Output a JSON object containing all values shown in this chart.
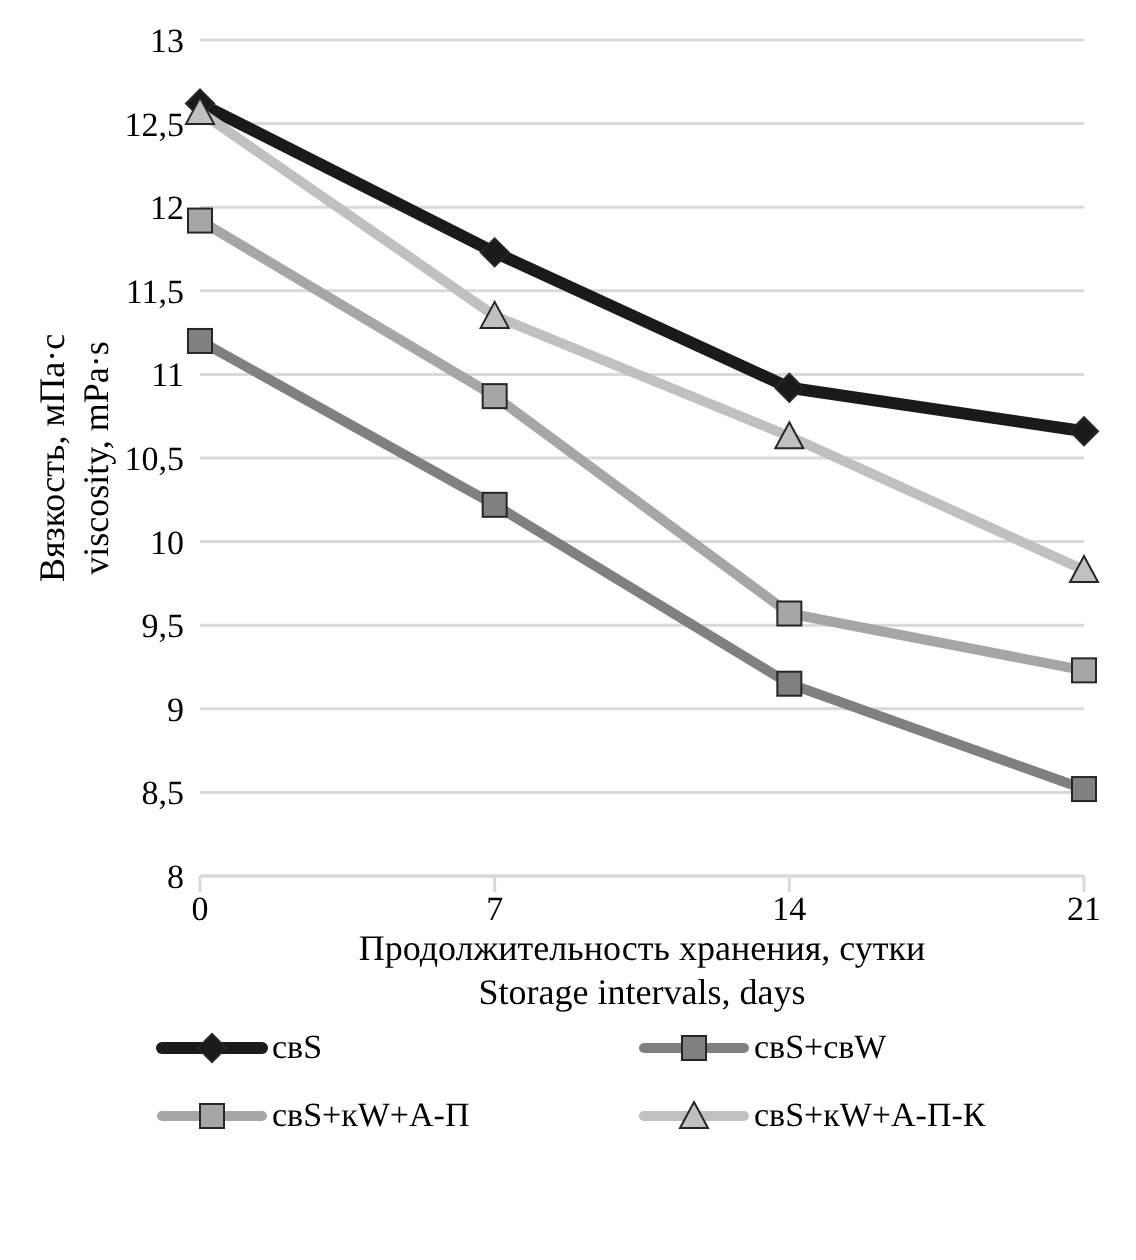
{
  "chart_data": {
    "type": "line",
    "xlabel": "Продолжительность хранения, сутки\nStorage intervals, days",
    "ylabel": "Вязкость, мПа·с\nviscosity, mPa·s",
    "categories": [
      "0",
      "7",
      "14",
      "21"
    ],
    "series": [
      {
        "name": "свS",
        "color": "#1a1a1a",
        "marker": "diamond",
        "values": [
          12.62,
          11.73,
          10.92,
          10.66
        ]
      },
      {
        "name": "свS+свW",
        "color": "#808080",
        "marker": "square",
        "values": [
          11.2,
          10.22,
          9.15,
          8.52
        ]
      },
      {
        "name": "свS+кW+А-П",
        "color": "#a6a6a6",
        "marker": "square",
        "values": [
          11.92,
          10.87,
          9.57,
          9.23
        ]
      },
      {
        "name": "свS+кW+А-П-К",
        "color": "#c0c0c0",
        "marker": "triangle",
        "values": [
          12.57,
          11.35,
          10.63,
          9.83
        ]
      }
    ],
    "ylim": [
      8,
      13
    ],
    "yticks": [
      8,
      {
        "value": 8.5,
        "label": "8,5"
      },
      9,
      {
        "value": 9.5,
        "label": "9,5"
      },
      10,
      {
        "value": 10.5,
        "label": "10,5"
      },
      11,
      {
        "value": 11.5,
        "label": "11,5"
      },
      12,
      {
        "value": 12.5,
        "label": "12,5"
      },
      13
    ],
    "grid": "y",
    "legend": "bottom"
  }
}
